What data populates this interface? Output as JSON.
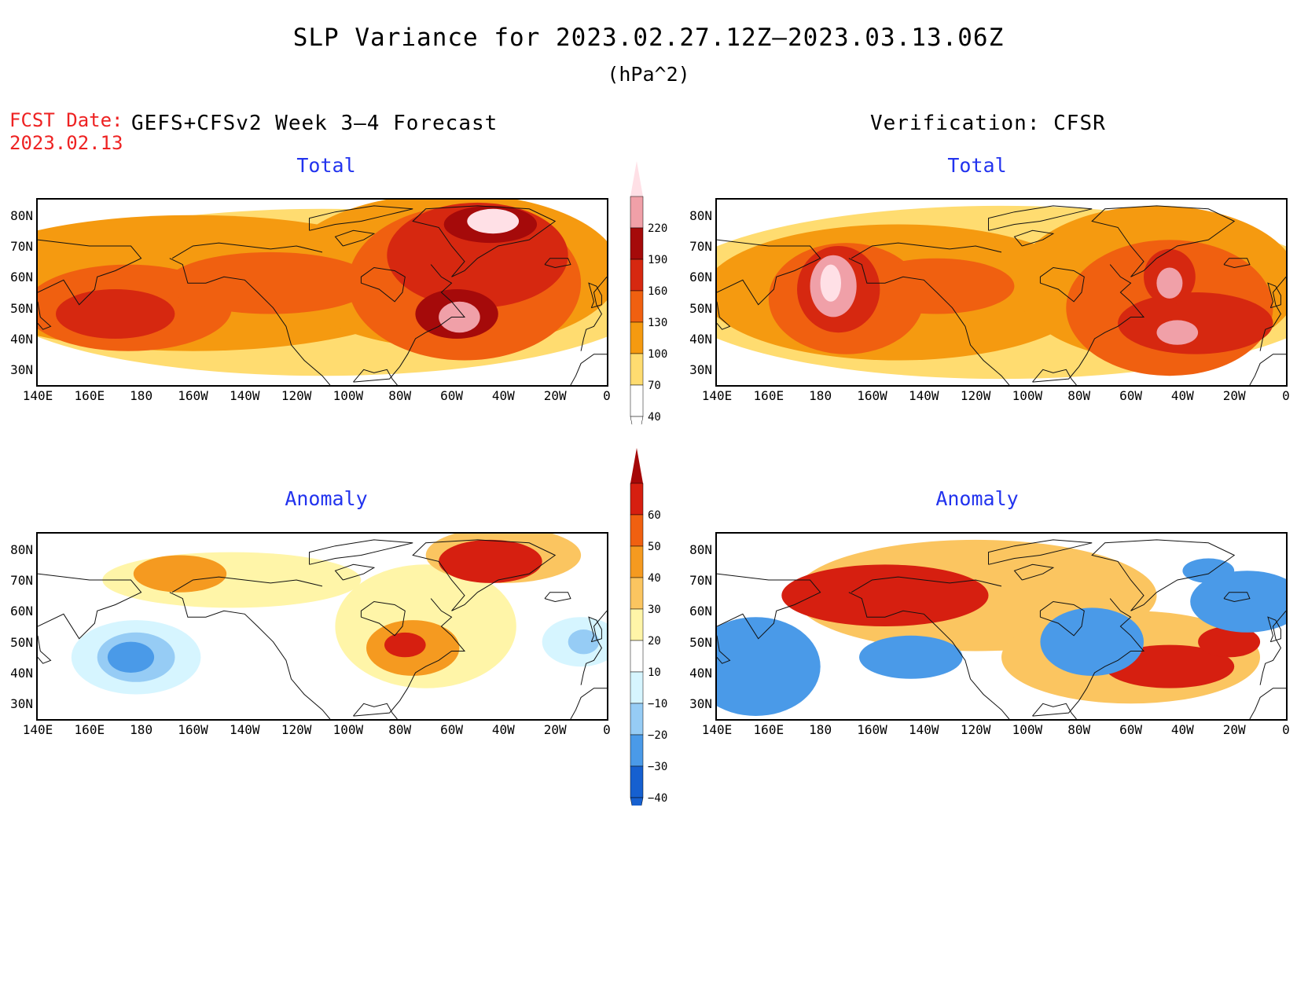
{
  "title": "SLP Variance for 2023.02.27.12Z–2023.03.13.06Z",
  "units": "(hPa^2)",
  "fcst": {
    "label": "FCST Date:",
    "date": "2023.02.13"
  },
  "left_header": "GEFS+CFSv2 Week 3–4 Forecast",
  "right_header": "Verification: CFSR",
  "panels": {
    "forecast_total": "Total",
    "verification_total": "Total",
    "forecast_anomaly": "Anomaly",
    "verification_anomaly": "Anomaly"
  },
  "axes": {
    "lat_labels": [
      "80N",
      "70N",
      "60N",
      "50N",
      "40N",
      "30N"
    ],
    "lon_labels": [
      "140E",
      "160E",
      "180",
      "160W",
      "140W",
      "120W",
      "100W",
      "80W",
      "60W",
      "40W",
      "20W",
      "0"
    ]
  },
  "colorbars": {
    "total": {
      "labels": [
        "220",
        "190",
        "160",
        "130",
        "100",
        "70",
        "40"
      ],
      "colors": [
        "#ffe0e6",
        "#f0a0a8",
        "#a50a0a",
        "#d62810",
        "#f06010",
        "#f59a10",
        "#ffdc70",
        "#ffffff"
      ]
    },
    "anomaly": {
      "labels": [
        "60",
        "50",
        "40",
        "30",
        "20",
        "10",
        "−10",
        "−20",
        "−30",
        "−40"
      ],
      "colors": [
        "#a50808",
        "#d61f10",
        "#f06010",
        "#f59a20",
        "#fbc560",
        "#fff5a8",
        "#ffffff",
        "#d6f5ff",
        "#96ccf5",
        "#4a9ae8",
        "#1660d0"
      ]
    }
  },
  "chart_data": [
    {
      "type": "heatmap",
      "panel": "GEFS+CFSv2 Week 3–4 Forecast / Total",
      "variable": "SLP Variance",
      "units": "hPa^2",
      "x_range_lon": [
        "140E",
        "0"
      ],
      "y_range_lat": [
        "25N",
        "85N"
      ],
      "levels": [
        40,
        70,
        100,
        130,
        160,
        190,
        220
      ],
      "features": [
        {
          "lat": 47,
          "lon": "170E",
          "approx_value": 140
        },
        {
          "lat": 78,
          "lon": "45W",
          "approx_value": 230
        },
        {
          "lat": 47,
          "lon": "58W",
          "approx_value": 200
        }
      ]
    },
    {
      "type": "heatmap",
      "panel": "Verification: CFSR / Total",
      "variable": "SLP Variance",
      "units": "hPa^2",
      "x_range_lon": [
        "140E",
        "0"
      ],
      "y_range_lat": [
        "25N",
        "85N"
      ],
      "levels": [
        40,
        70,
        100,
        130,
        160,
        190,
        220
      ],
      "features": [
        {
          "lat": 57,
          "lon": "175W",
          "approx_value": 230
        },
        {
          "lat": 58,
          "lon": "48W",
          "approx_value": 220
        },
        {
          "lat": 42,
          "lon": "45W",
          "approx_value": 220
        }
      ]
    },
    {
      "type": "heatmap",
      "panel": "GEFS+CFSv2 Week 3–4 Forecast / Anomaly",
      "variable": "SLP Variance Anomaly",
      "units": "hPa^2",
      "x_range_lon": [
        "140E",
        "0"
      ],
      "y_range_lat": [
        "25N",
        "85N"
      ],
      "levels": [
        -40,
        -30,
        -20,
        -10,
        10,
        20,
        30,
        40,
        50,
        60
      ],
      "features": [
        {
          "lat": 77,
          "lon": "45W",
          "approx_value": 55
        },
        {
          "lat": 47,
          "lon": "80W",
          "approx_value": 50
        },
        {
          "lat": 45,
          "lon": "175E",
          "approx_value": -35
        },
        {
          "lat": 50,
          "lon": "10W",
          "approx_value": -20
        }
      ]
    },
    {
      "type": "heatmap",
      "panel": "Verification: CFSR / Anomaly",
      "variable": "SLP Variance Anomaly",
      "units": "hPa^2",
      "x_range_lon": [
        "140E",
        "0"
      ],
      "y_range_lat": [
        "25N",
        "85N"
      ],
      "levels": [
        -40,
        -30,
        -20,
        -10,
        10,
        20,
        30,
        40,
        50,
        60
      ],
      "features": [
        {
          "lat": 63,
          "lon": "165W",
          "approx_value": 65
        },
        {
          "lat": 40,
          "lon": "45W",
          "approx_value": 65
        },
        {
          "lat": 42,
          "lon": "155E",
          "approx_value": -45
        },
        {
          "lat": 50,
          "lon": "80W",
          "approx_value": -45
        },
        {
          "lat": 65,
          "lon": "20W",
          "approx_value": -45
        },
        {
          "lat": 45,
          "lon": "140W",
          "approx_value": -40
        }
      ]
    }
  ]
}
